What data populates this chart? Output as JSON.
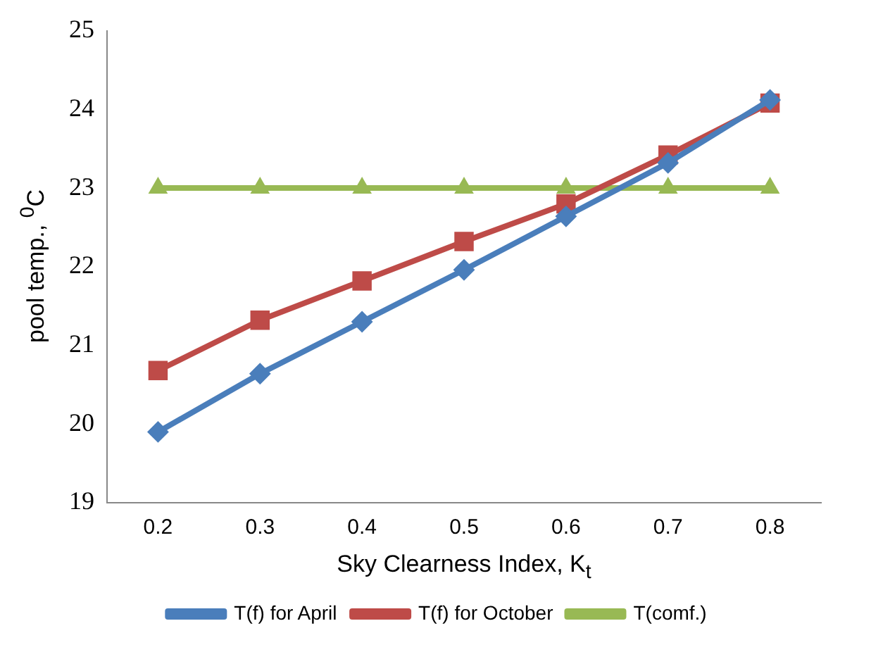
{
  "chart_data": {
    "type": "line",
    "xlabel": "Sky Clearness Index, K$_{t}$",
    "ylabel": "pool temp., $^{0}$C",
    "categories": [
      "0.2",
      "0.3",
      "0.4",
      "0.5",
      "0.6",
      "0.7",
      "0.8"
    ],
    "series": [
      {
        "name": "T(f) for April",
        "color": "#4a7ebb",
        "marker": "diamond",
        "values": [
          19.9,
          20.64,
          21.3,
          21.96,
          22.64,
          23.32,
          24.12
        ]
      },
      {
        "name": "T(f) for October",
        "color": "#be4b48",
        "marker": "square",
        "values": [
          20.68,
          21.32,
          21.82,
          22.32,
          22.8,
          23.42,
          24.08
        ]
      },
      {
        "name": "T(comf.)",
        "color": "#98b954",
        "marker": "triangle",
        "values": [
          23,
          23,
          23,
          23,
          23,
          23,
          23
        ]
      }
    ],
    "ylim": [
      19,
      25
    ],
    "yticks": [
      19,
      20,
      21,
      22,
      23,
      24,
      25
    ],
    "grid": false,
    "legend": "bottom",
    "line_style": "solid"
  }
}
